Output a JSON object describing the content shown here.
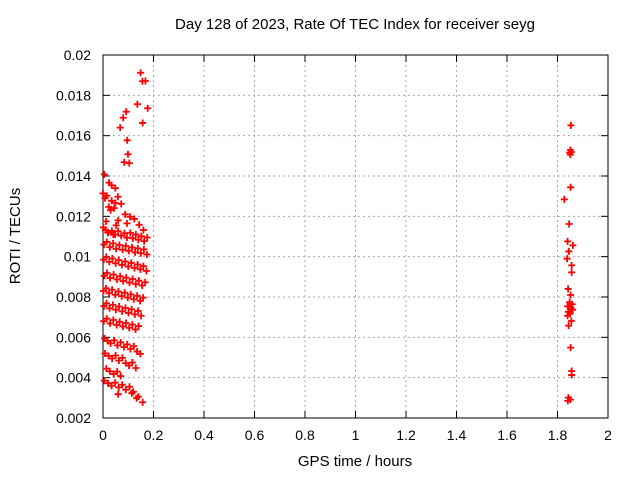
{
  "title": "Day 128 of 2023, Rate Of TEC Index for receiver seyg",
  "chart_data": {
    "type": "scatter",
    "title": "Day 128 of 2023, Rate Of TEC Index for receiver seyg",
    "xlabel": "GPS time / hours",
    "ylabel": "ROTI / TECUs",
    "xlim": [
      0,
      2
    ],
    "ylim": [
      0.002,
      0.02
    ],
    "xticks": [
      0,
      0.2,
      0.4,
      0.6,
      0.8,
      1,
      1.2,
      1.4,
      1.6,
      1.8,
      2
    ],
    "xtick_labels": [
      "0",
      "0.2",
      "0.4",
      "0.6",
      "0.8",
      "1",
      "1.2",
      "1.4",
      "1.6",
      "1.8",
      "2"
    ],
    "yticks": [
      0.002,
      0.004,
      0.006,
      0.008,
      0.01,
      0.012,
      0.014,
      0.016,
      0.018,
      0.02
    ],
    "ytick_labels": [
      "0.002",
      "0.004",
      "0.006",
      "0.008",
      "0.01",
      "0.012",
      "0.014",
      "0.016",
      "0.018",
      "0.02"
    ],
    "grid": true,
    "legend": "none",
    "colors": {
      "marker": "#ff0000",
      "grid": "#a8a8a8",
      "border": "#000000",
      "text": "#000000"
    },
    "marker": {
      "shape": "plus",
      "half_size": 3.5,
      "stroke_width": 1.8
    },
    "series": [
      {
        "name": "ROTI",
        "color": "#ff0000",
        "points": [
          [
            0.149,
            0.01912
          ],
          [
            0.156,
            0.0187
          ],
          [
            0.168,
            0.01871
          ],
          [
            0.136,
            0.01756
          ],
          [
            0.177,
            0.01736
          ],
          [
            0.092,
            0.01719
          ],
          [
            0.08,
            0.01689
          ],
          [
            0.157,
            0.01663
          ],
          [
            0.068,
            0.0164
          ],
          [
            0.096,
            0.01577
          ],
          [
            0.099,
            0.01508
          ],
          [
            0.084,
            0.01468
          ],
          [
            0.104,
            0.01464
          ],
          [
            0.005,
            0.01408
          ],
          [
            0.024,
            0.01367
          ],
          [
            0.034,
            0.01354
          ],
          [
            0.049,
            0.0134
          ],
          [
            0.0,
            0.01314
          ],
          [
            0.015,
            0.01302
          ],
          [
            0.059,
            0.01297
          ],
          [
            0.008,
            0.0129
          ],
          [
            0.034,
            0.01277
          ],
          [
            0.049,
            0.01266
          ],
          [
            0.072,
            0.01262
          ],
          [
            0.023,
            0.01247
          ],
          [
            0.044,
            0.01241
          ],
          [
            0.03,
            0.0123
          ],
          [
            0.088,
            0.0121
          ],
          [
            0.107,
            0.01198
          ],
          [
            0.124,
            0.01187
          ],
          [
            0.06,
            0.0118
          ],
          [
            0.012,
            0.01175
          ],
          [
            0.095,
            0.01165
          ],
          [
            0.143,
            0.01158
          ],
          [
            0.052,
            0.01155
          ],
          [
            0.16,
            0.01132
          ],
          [
            0.019,
            0.01119
          ],
          [
            0.041,
            0.01109
          ],
          [
            0.002,
            0.01145
          ],
          [
            0.01,
            0.01132
          ],
          [
            0.021,
            0.01121
          ],
          [
            0.035,
            0.01128
          ],
          [
            0.048,
            0.0111
          ],
          [
            0.06,
            0.01126
          ],
          [
            0.072,
            0.01104
          ],
          [
            0.085,
            0.01116
          ],
          [
            0.095,
            0.01094
          ],
          [
            0.108,
            0.01118
          ],
          [
            0.118,
            0.01091
          ],
          [
            0.13,
            0.0111
          ],
          [
            0.14,
            0.01084
          ],
          [
            0.152,
            0.01101
          ],
          [
            0.163,
            0.01077
          ],
          [
            0.175,
            0.01095
          ],
          [
            0.004,
            0.0106
          ],
          [
            0.015,
            0.01073
          ],
          [
            0.027,
            0.01047
          ],
          [
            0.04,
            0.01066
          ],
          [
            0.052,
            0.01039
          ],
          [
            0.065,
            0.01058
          ],
          [
            0.078,
            0.01034
          ],
          [
            0.09,
            0.01053
          ],
          [
            0.102,
            0.01029
          ],
          [
            0.115,
            0.01046
          ],
          [
            0.127,
            0.01021
          ],
          [
            0.138,
            0.01041
          ],
          [
            0.15,
            0.01017
          ],
          [
            0.162,
            0.01036
          ],
          [
            0.174,
            0.01011
          ],
          [
            0.003,
            0.00985
          ],
          [
            0.013,
            0.00999
          ],
          [
            0.025,
            0.00974
          ],
          [
            0.037,
            0.00991
          ],
          [
            0.05,
            0.00967
          ],
          [
            0.062,
            0.00983
          ],
          [
            0.075,
            0.00959
          ],
          [
            0.088,
            0.00976
          ],
          [
            0.1,
            0.00951
          ],
          [
            0.112,
            0.00969
          ],
          [
            0.125,
            0.00944
          ],
          [
            0.137,
            0.00961
          ],
          [
            0.148,
            0.00937
          ],
          [
            0.16,
            0.00953
          ],
          [
            0.172,
            0.00929
          ],
          [
            0.005,
            0.00905
          ],
          [
            0.016,
            0.00919
          ],
          [
            0.028,
            0.00894
          ],
          [
            0.042,
            0.00911
          ],
          [
            0.055,
            0.00887
          ],
          [
            0.068,
            0.00903
          ],
          [
            0.08,
            0.00879
          ],
          [
            0.092,
            0.00896
          ],
          [
            0.105,
            0.00871
          ],
          [
            0.117,
            0.00889
          ],
          [
            0.13,
            0.00864
          ],
          [
            0.142,
            0.00881
          ],
          [
            0.155,
            0.00857
          ],
          [
            0.167,
            0.00873
          ],
          [
            0.002,
            0.0083
          ],
          [
            0.012,
            0.00843
          ],
          [
            0.024,
            0.00819
          ],
          [
            0.036,
            0.00836
          ],
          [
            0.049,
            0.00811
          ],
          [
            0.061,
            0.00827
          ],
          [
            0.074,
            0.00804
          ],
          [
            0.086,
            0.00821
          ],
          [
            0.098,
            0.00797
          ],
          [
            0.11,
            0.00813
          ],
          [
            0.122,
            0.00789
          ],
          [
            0.135,
            0.00806
          ],
          [
            0.147,
            0.00781
          ],
          [
            0.159,
            0.00797
          ],
          [
            0.004,
            0.00755
          ],
          [
            0.014,
            0.00769
          ],
          [
            0.026,
            0.00744
          ],
          [
            0.039,
            0.00761
          ],
          [
            0.051,
            0.00737
          ],
          [
            0.064,
            0.00753
          ],
          [
            0.076,
            0.00729
          ],
          [
            0.089,
            0.00746
          ],
          [
            0.101,
            0.00721
          ],
          [
            0.113,
            0.00739
          ],
          [
            0.126,
            0.00714
          ],
          [
            0.139,
            0.00731
          ],
          [
            0.151,
            0.00707
          ],
          [
            0.003,
            0.0068
          ],
          [
            0.015,
            0.00693
          ],
          [
            0.028,
            0.00669
          ],
          [
            0.041,
            0.00686
          ],
          [
            0.054,
            0.00661
          ],
          [
            0.066,
            0.00677
          ],
          [
            0.079,
            0.00654
          ],
          [
            0.091,
            0.00671
          ],
          [
            0.104,
            0.00647
          ],
          [
            0.116,
            0.00663
          ],
          [
            0.129,
            0.00639
          ],
          [
            0.141,
            0.00656
          ],
          [
            0.006,
            0.00595
          ],
          [
            0.018,
            0.00582
          ],
          [
            0.03,
            0.0057
          ],
          [
            0.044,
            0.00585
          ],
          [
            0.057,
            0.0056
          ],
          [
            0.07,
            0.00575
          ],
          [
            0.083,
            0.00552
          ],
          [
            0.096,
            0.00565
          ],
          [
            0.109,
            0.00542
          ],
          [
            0.122,
            0.00556
          ],
          [
            0.135,
            0.0053
          ],
          [
            0.148,
            0.00518
          ],
          [
            0.008,
            0.0052
          ],
          [
            0.022,
            0.00508
          ],
          [
            0.036,
            0.00495
          ],
          [
            0.05,
            0.0051
          ],
          [
            0.063,
            0.00485
          ],
          [
            0.077,
            0.00498
          ],
          [
            0.09,
            0.00472
          ],
          [
            0.103,
            0.0046
          ],
          [
            0.116,
            0.00475
          ],
          [
            0.13,
            0.00448
          ],
          [
            0.013,
            0.00445
          ],
          [
            0.027,
            0.00432
          ],
          [
            0.042,
            0.00418
          ],
          [
            0.056,
            0.0043
          ],
          [
            0.07,
            0.00408
          ],
          [
            0.005,
            0.00385
          ],
          [
            0.02,
            0.00372
          ],
          [
            0.034,
            0.0036
          ],
          [
            0.048,
            0.00375
          ],
          [
            0.062,
            0.00352
          ],
          [
            0.076,
            0.00365
          ],
          [
            0.09,
            0.0034
          ],
          [
            0.105,
            0.00355
          ],
          [
            0.12,
            0.0033
          ],
          [
            0.06,
            0.00318
          ],
          [
            0.114,
            0.00323
          ],
          [
            0.133,
            0.00298
          ],
          [
            0.14,
            0.00306
          ],
          [
            0.157,
            0.00278
          ],
          [
            1.853,
            0.01651
          ],
          [
            1.851,
            0.01529
          ],
          [
            1.855,
            0.01519
          ],
          [
            1.848,
            0.01516
          ],
          [
            1.851,
            0.01506
          ],
          [
            1.852,
            0.01344
          ],
          [
            1.827,
            0.01284
          ],
          [
            1.846,
            0.01162
          ],
          [
            1.84,
            0.01076
          ],
          [
            1.861,
            0.01056
          ],
          [
            1.845,
            0.01026
          ],
          [
            1.838,
            0.0099
          ],
          [
            1.856,
            0.00957
          ],
          [
            1.856,
            0.00922
          ],
          [
            1.842,
            0.0084
          ],
          [
            1.852,
            0.0081
          ],
          [
            1.848,
            0.00774
          ],
          [
            1.858,
            0.00764
          ],
          [
            1.84,
            0.00754
          ],
          [
            1.853,
            0.00747
          ],
          [
            1.86,
            0.00737
          ],
          [
            1.843,
            0.00727
          ],
          [
            1.85,
            0.00717
          ],
          [
            1.84,
            0.00707
          ],
          [
            1.855,
            0.00681
          ],
          [
            1.844,
            0.00658
          ],
          [
            1.852,
            0.00549
          ],
          [
            1.856,
            0.00433
          ],
          [
            1.856,
            0.00413
          ],
          [
            1.843,
            0.00301
          ],
          [
            1.851,
            0.00291
          ],
          [
            1.841,
            0.00285
          ]
        ]
      }
    ]
  }
}
